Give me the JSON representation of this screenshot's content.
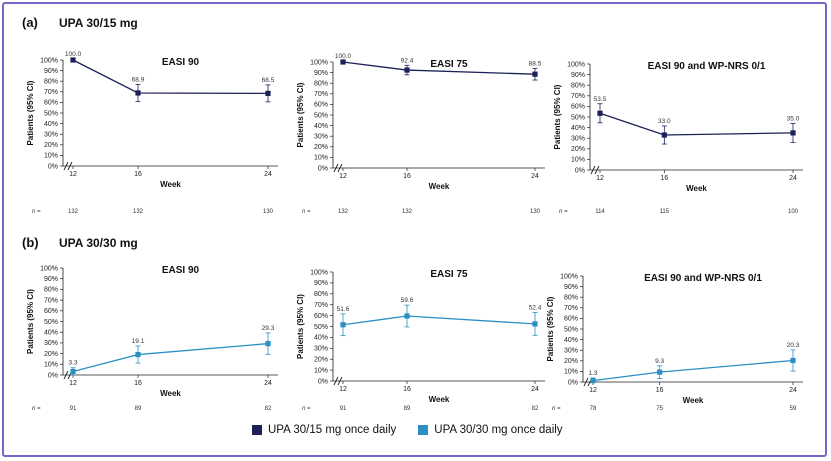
{
  "panels": [
    {
      "label": "(a)",
      "title": "UPA 30/15 mg",
      "color": "#1c2157"
    },
    {
      "label": "(b)",
      "title": "UPA 30/30 mg",
      "color": "#2a8fc4"
    }
  ],
  "legend": [
    {
      "label": "UPA 30/15 mg once daily",
      "color": "#1c2157"
    },
    {
      "label": "UPA 30/30 mg once daily",
      "color": "#2a8fc4"
    }
  ],
  "chart_data": [
    {
      "type": "line",
      "panel": 0,
      "title": "EASI 90",
      "x": [
        12,
        16,
        24
      ],
      "values": [
        100.0,
        68.9,
        68.5
      ],
      "ci": [
        [
          0,
          0
        ],
        [
          8,
          8
        ],
        [
          8,
          8
        ]
      ],
      "labels": [
        "100.0",
        "68.9",
        "68.5"
      ],
      "n_label": "n =",
      "n": [
        "132",
        "132",
        "130"
      ],
      "xlabel": "Week",
      "ylabel": "Patients (95% CI)",
      "ylim": [
        0,
        100
      ],
      "yticks": [
        "0%",
        "10%",
        "20%",
        "30%",
        "40%",
        "50%",
        "60%",
        "70%",
        "80%",
        "90%",
        "100%"
      ],
      "xticks": [
        "12",
        "16",
        "24"
      ],
      "axis_break": true
    },
    {
      "type": "line",
      "panel": 0,
      "title": "EASI 75",
      "x": [
        12,
        16,
        24
      ],
      "values": [
        100.0,
        92.4,
        88.5
      ],
      "ci": [
        [
          0,
          0
        ],
        [
          4.5,
          4.5
        ],
        [
          5.5,
          5.5
        ]
      ],
      "labels": [
        "100.0",
        "92.4",
        "88.5"
      ],
      "n_label": "n =",
      "n": [
        "132",
        "132",
        "130"
      ],
      "xlabel": "Week",
      "ylabel": "Patients (95% CI)",
      "ylim": [
        0,
        100
      ],
      "yticks": [
        "0%",
        "10%",
        "20%",
        "30%",
        "40%",
        "50%",
        "60%",
        "70%",
        "80%",
        "90%",
        "100%"
      ],
      "xticks": [
        "12",
        "16",
        "24"
      ],
      "axis_break": true
    },
    {
      "type": "line",
      "panel": 0,
      "title": "EASI 90 and WP-NRS 0/1",
      "x": [
        12,
        16,
        24
      ],
      "values": [
        53.5,
        33.0,
        35.0
      ],
      "ci": [
        [
          9,
          9
        ],
        [
          8.5,
          8.5
        ],
        [
          9,
          9
        ]
      ],
      "labels": [
        "53.5",
        "33.0",
        "35.0"
      ],
      "n_label": "n =",
      "n": [
        "114",
        "115",
        "100"
      ],
      "xlabel": "Week",
      "ylabel": "Patients (95% CI)",
      "ylim": [
        0,
        100
      ],
      "yticks": [
        "0%",
        "10%",
        "20%",
        "30%",
        "40%",
        "50%",
        "60%",
        "70%",
        "80%",
        "90%",
        "100%"
      ],
      "xticks": [
        "12",
        "16",
        "24"
      ],
      "axis_break": true
    },
    {
      "type": "line",
      "panel": 1,
      "title": "EASI 90",
      "x": [
        12,
        16,
        24
      ],
      "values": [
        3.3,
        19.1,
        29.3
      ],
      "ci": [
        [
          3.3,
          3.5
        ],
        [
          8,
          8
        ],
        [
          10,
          10
        ]
      ],
      "labels": [
        "3.3",
        "19.1",
        "29.3"
      ],
      "n_label": "n =",
      "n": [
        "91",
        "89",
        "82"
      ],
      "xlabel": "Week",
      "ylabel": "Patients (95% CI)",
      "ylim": [
        0,
        100
      ],
      "yticks": [
        "0%",
        "10%",
        "20%",
        "30%",
        "40%",
        "50%",
        "60%",
        "70%",
        "80%",
        "90%",
        "100%"
      ],
      "xticks": [
        "12",
        "16",
        "24"
      ],
      "axis_break": true
    },
    {
      "type": "line",
      "panel": 1,
      "title": "EASI 75",
      "x": [
        12,
        16,
        24
      ],
      "values": [
        51.6,
        59.6,
        52.4
      ],
      "ci": [
        [
          10,
          10
        ],
        [
          10,
          10
        ],
        [
          10.5,
          10.5
        ]
      ],
      "labels": [
        "51.6",
        "59.6",
        "52.4"
      ],
      "n_label": "n =",
      "n": [
        "91",
        "89",
        "82"
      ],
      "xlabel": "Week",
      "ylabel": "Patients (95% CI)",
      "ylim": [
        0,
        100
      ],
      "yticks": [
        "0%",
        "10%",
        "20%",
        "30%",
        "40%",
        "50%",
        "60%",
        "70%",
        "80%",
        "90%",
        "100%"
      ],
      "xticks": [
        "12",
        "16",
        "24"
      ],
      "axis_break": true
    },
    {
      "type": "line",
      "panel": 1,
      "title": "EASI 90 and WP-NRS 0/1",
      "x": [
        12,
        16,
        24
      ],
      "values": [
        1.3,
        9.3,
        20.3
      ],
      "ci": [
        [
          1.3,
          2.5
        ],
        [
          6,
          6
        ],
        [
          10,
          10
        ]
      ],
      "labels": [
        "1.3",
        "9.3",
        "20.3"
      ],
      "n_label": "n =",
      "n": [
        "78",
        "75",
        "59"
      ],
      "xlabel": "Week",
      "ylabel": "Patients (95% CI)",
      "ylim": [
        0,
        100
      ],
      "yticks": [
        "0%",
        "10%",
        "20%",
        "30%",
        "40%",
        "50%",
        "60%",
        "70%",
        "80%",
        "90%",
        "100%"
      ],
      "xticks": [
        "12",
        "16",
        "24"
      ],
      "axis_break": true
    }
  ]
}
